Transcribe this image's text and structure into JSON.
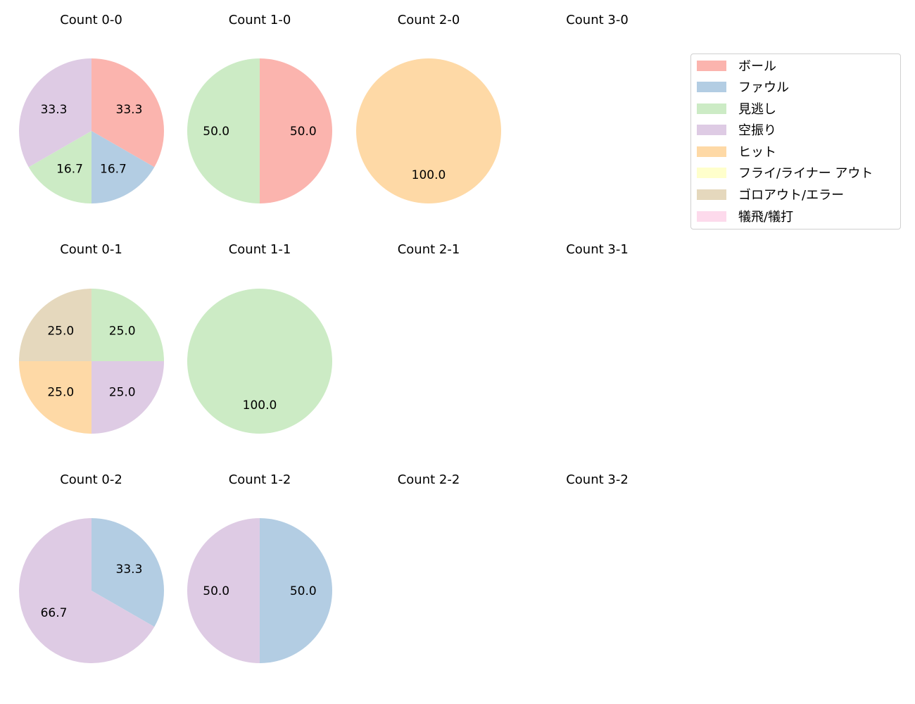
{
  "chart_data": {
    "type": "pie",
    "categories": [
      "ボール",
      "ファウル",
      "見逃し",
      "空振り",
      "ヒット",
      "フライ/ライナー アウト",
      "ゴロアウト/エラー",
      "犠飛/犠打"
    ],
    "colors": [
      "#fbb4ae",
      "#b3cde3",
      "#ccebc5",
      "#decbe4",
      "#fed9a6",
      "#ffffcc",
      "#e5d8bd",
      "#fddaec"
    ],
    "legend_position": "upper right",
    "subplots": [
      {
        "title": "Count 0-0",
        "row": 0,
        "col": 0,
        "slices": [
          {
            "category": "ボール",
            "value": 33.3
          },
          {
            "category": "ファウル",
            "value": 16.7
          },
          {
            "category": "見逃し",
            "value": 16.7
          },
          {
            "category": "空振り",
            "value": 33.3
          }
        ]
      },
      {
        "title": "Count 1-0",
        "row": 0,
        "col": 1,
        "slices": [
          {
            "category": "ボール",
            "value": 50.0
          },
          {
            "category": "見逃し",
            "value": 50.0
          }
        ]
      },
      {
        "title": "Count 2-0",
        "row": 0,
        "col": 2,
        "slices": [
          {
            "category": "ヒット",
            "value": 100.0
          }
        ]
      },
      {
        "title": "Count 3-0",
        "row": 0,
        "col": 3,
        "slices": []
      },
      {
        "title": "Count 0-1",
        "row": 1,
        "col": 0,
        "slices": [
          {
            "category": "見逃し",
            "value": 25.0
          },
          {
            "category": "空振り",
            "value": 25.0
          },
          {
            "category": "ヒット",
            "value": 25.0
          },
          {
            "category": "ゴロアウト/エラー",
            "value": 25.0
          }
        ]
      },
      {
        "title": "Count 1-1",
        "row": 1,
        "col": 1,
        "slices": [
          {
            "category": "見逃し",
            "value": 100.0
          }
        ]
      },
      {
        "title": "Count 2-1",
        "row": 1,
        "col": 2,
        "slices": []
      },
      {
        "title": "Count 3-1",
        "row": 1,
        "col": 3,
        "slices": []
      },
      {
        "title": "Count 0-2",
        "row": 2,
        "col": 0,
        "slices": [
          {
            "category": "ファウル",
            "value": 33.3
          },
          {
            "category": "空振り",
            "value": 66.7
          }
        ]
      },
      {
        "title": "Count 1-2",
        "row": 2,
        "col": 1,
        "slices": [
          {
            "category": "ファウル",
            "value": 50.0
          },
          {
            "category": "空振り",
            "value": 50.0
          }
        ]
      },
      {
        "title": "Count 2-2",
        "row": 2,
        "col": 2,
        "slices": []
      },
      {
        "title": "Count 3-2",
        "row": 2,
        "col": 3,
        "slices": []
      }
    ]
  },
  "legend": {
    "items": [
      {
        "label": "ボール",
        "color": "#fbb4ae"
      },
      {
        "label": "ファウル",
        "color": "#b3cde3"
      },
      {
        "label": "見逃し",
        "color": "#ccebc5"
      },
      {
        "label": "空振り",
        "color": "#decbe4"
      },
      {
        "label": "ヒット",
        "color": "#fed9a6"
      },
      {
        "label": "フライ/ライナー アウト",
        "color": "#ffffcc"
      },
      {
        "label": "ゴロアウト/エラー",
        "color": "#e5d8bd"
      },
      {
        "label": "犠飛/犠打",
        "color": "#fddaec"
      }
    ]
  }
}
